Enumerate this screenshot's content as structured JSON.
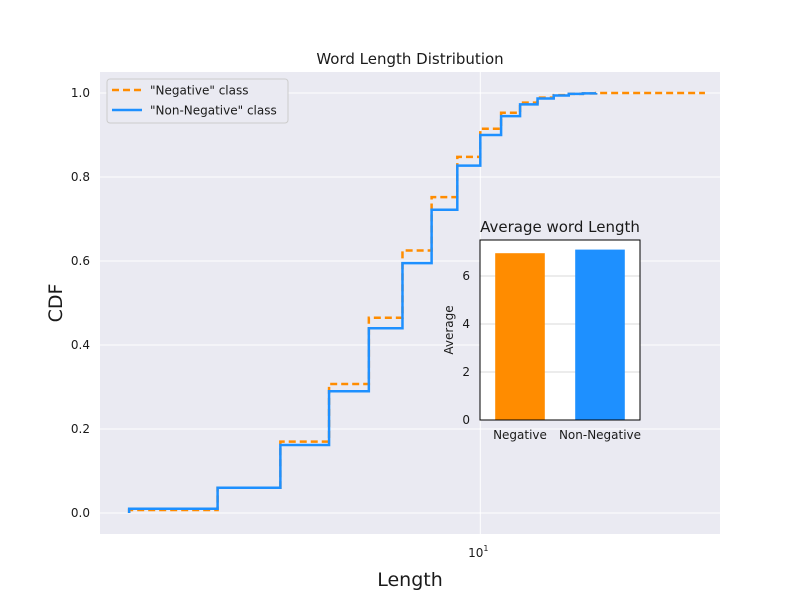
{
  "chart_data": [
    {
      "type": "line",
      "title": "Word Length Distribution",
      "xlabel": "Length",
      "ylabel": "CDF",
      "xscale": "log",
      "xlim": [
        1.75,
        30
      ],
      "ylim": [
        -0.05,
        1.05
      ],
      "x_tick_labels": [
        {
          "value": 10,
          "base": "10",
          "exponent": "1"
        }
      ],
      "y_ticks": [
        0.0,
        0.2,
        0.4,
        0.6,
        0.8,
        1.0
      ],
      "y_tick_labels": [
        "0.0",
        "0.2",
        "0.4",
        "0.6",
        "0.8",
        "1.0"
      ],
      "grid": true,
      "legend": "top-left",
      "step": "post",
      "series": [
        {
          "name": "\"Negative\" class",
          "color": "#ff8c00",
          "style": "dashed",
          "x": [
            2,
            3,
            4,
            5,
            6,
            7,
            8,
            9,
            10,
            11,
            12,
            13,
            14,
            15,
            16,
            17,
            28
          ],
          "y": [
            0.007,
            0.06,
            0.17,
            0.307,
            0.465,
            0.625,
            0.752,
            0.848,
            0.915,
            0.953,
            0.977,
            0.989,
            0.995,
            0.998,
            0.999,
            1.0,
            1.0
          ]
        },
        {
          "name": "\"Non-Negative\" class",
          "color": "#1e90ff",
          "style": "solid",
          "x": [
            2,
            3,
            4,
            5,
            6,
            7,
            8,
            9,
            10,
            11,
            12,
            13,
            14,
            15,
            16,
            17
          ],
          "y": [
            0.01,
            0.06,
            0.162,
            0.29,
            0.44,
            0.595,
            0.722,
            0.827,
            0.9,
            0.945,
            0.973,
            0.987,
            0.994,
            0.998,
            0.999,
            1.0
          ]
        }
      ]
    },
    {
      "type": "bar",
      "title": "Average word Length",
      "xlabel": "",
      "ylabel": "Average",
      "categories": [
        "Negative",
        "Non-Negative"
      ],
      "values": [
        6.95,
        7.1
      ],
      "colors": [
        "#ff8c00",
        "#1e90ff"
      ],
      "ylim": [
        0,
        7.5
      ],
      "y_ticks": [
        0,
        2,
        4,
        6
      ],
      "y_tick_labels": [
        "0",
        "2",
        "4",
        "6"
      ],
      "grid": true
    }
  ]
}
